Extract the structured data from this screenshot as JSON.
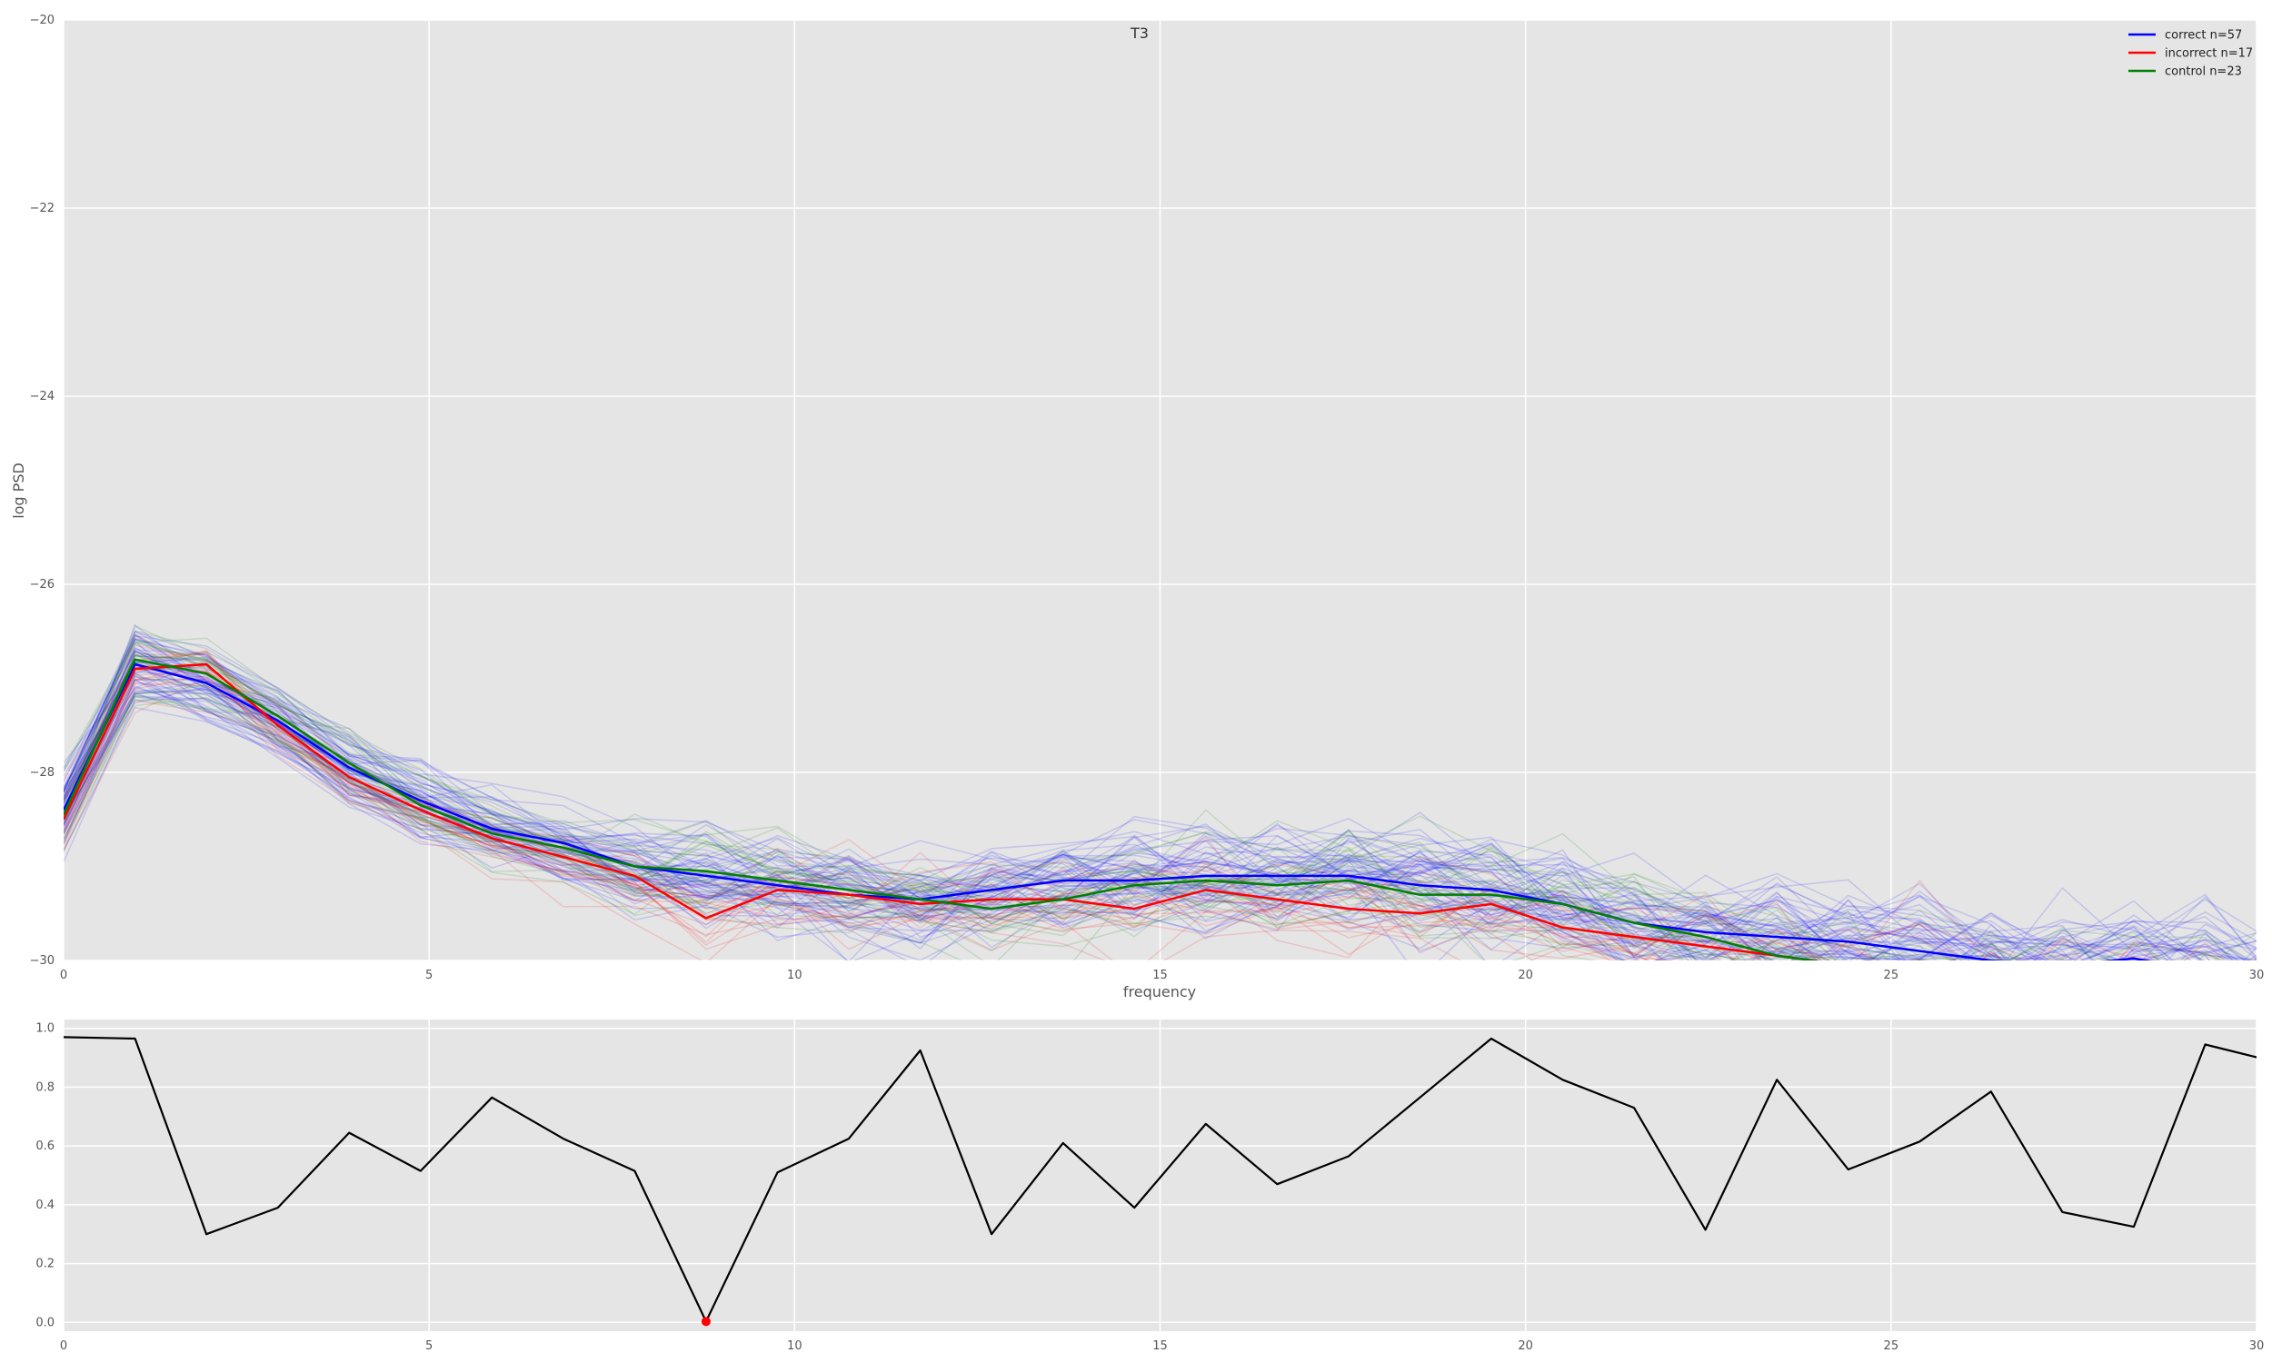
{
  "chart_data": [
    {
      "type": "line",
      "title": "T3",
      "xlabel": "frequency",
      "ylabel": "log PSD",
      "xlim": [
        0,
        30
      ],
      "ylim": [
        -30,
        -20
      ],
      "xticks": [
        0,
        5,
        10,
        15,
        20,
        25,
        30
      ],
      "yticks": [
        -30,
        -28,
        -26,
        -24,
        -22,
        -20
      ],
      "grid": true,
      "legend_position": "top-right",
      "x": [
        0,
        0.977,
        1.953,
        2.93,
        3.906,
        4.883,
        5.859,
        6.836,
        7.813,
        8.789,
        9.766,
        10.742,
        11.719,
        12.695,
        13.672,
        14.648,
        15.625,
        16.602,
        17.578,
        18.555,
        19.531,
        20.508,
        21.484,
        22.461,
        23.438,
        24.414,
        25.391,
        26.367,
        27.344,
        28.32,
        29.297,
        30.273
      ],
      "series": [
        {
          "name": "correct n=57",
          "color": "#0000ff",
          "values": [
            -28.4,
            -26.85,
            -27.05,
            -27.45,
            -27.95,
            -28.3,
            -28.6,
            -28.75,
            -29.0,
            -29.1,
            -29.2,
            -29.3,
            -29.35,
            -29.25,
            -29.15,
            -29.15,
            -29.1,
            -29.1,
            -29.1,
            -29.2,
            -29.25,
            -29.4,
            -29.6,
            -29.7,
            -29.75,
            -29.8,
            -29.9,
            -30.0,
            -30.05,
            -29.98,
            -30.1,
            -30.2
          ]
        },
        {
          "name": "incorrect n=17",
          "color": "#ff0000",
          "values": [
            -28.5,
            -26.9,
            -26.85,
            -27.5,
            -28.05,
            -28.4,
            -28.7,
            -28.9,
            -29.1,
            -29.55,
            -29.25,
            -29.3,
            -29.4,
            -29.35,
            -29.35,
            -29.45,
            -29.25,
            -29.35,
            -29.45,
            -29.5,
            -29.4,
            -29.65,
            -29.75,
            -29.85,
            -29.95,
            -30.05,
            -30.1,
            -30.15,
            -30.2,
            -30.2,
            -30.25,
            -30.3
          ]
        },
        {
          "name": "control n=23",
          "color": "#008000",
          "values": [
            -28.45,
            -26.8,
            -26.95,
            -27.4,
            -27.9,
            -28.35,
            -28.65,
            -28.8,
            -29.0,
            -29.05,
            -29.15,
            -29.25,
            -29.35,
            -29.45,
            -29.35,
            -29.2,
            -29.15,
            -29.2,
            -29.15,
            -29.3,
            -29.3,
            -29.4,
            -29.6,
            -29.75,
            -29.95,
            -30.05,
            -30.1,
            -30.15,
            -30.2,
            -30.25,
            -30.3,
            -30.35
          ]
        }
      ],
      "background_traces": {
        "correct_count": 57,
        "incorrect_count": 17,
        "control_count": 23,
        "opacity": 0.15
      }
    },
    {
      "type": "line",
      "xlim": [
        0,
        30
      ],
      "ylim": [
        -0.03,
        1.03
      ],
      "xticks": [
        0,
        5,
        10,
        15,
        20,
        25,
        30
      ],
      "yticks": [
        0.0,
        0.2,
        0.4,
        0.6,
        0.8,
        1.0
      ],
      "ytick_labels": [
        "0.0",
        "0.2",
        "0.4",
        "0.6",
        "0.8",
        "1.0"
      ],
      "grid": true,
      "x": [
        0,
        0.977,
        1.953,
        2.93,
        3.906,
        4.883,
        5.859,
        6.836,
        7.813,
        8.789,
        9.766,
        10.742,
        11.719,
        12.695,
        13.672,
        14.648,
        15.625,
        16.602,
        17.578,
        18.555,
        19.531,
        20.508,
        21.484,
        22.461,
        23.438,
        24.414,
        25.391,
        26.367,
        27.344,
        28.32,
        29.297,
        30.273
      ],
      "series": [
        {
          "color": "#000000",
          "values": [
            0.97,
            0.965,
            0.3,
            0.39,
            0.645,
            0.515,
            0.765,
            0.625,
            0.515,
            0.003,
            0.51,
            0.625,
            0.925,
            0.3,
            0.61,
            0.39,
            0.675,
            0.47,
            0.565,
            0.765,
            0.965,
            0.825,
            0.73,
            0.315,
            0.825,
            0.52,
            0.615,
            0.785,
            0.375,
            0.325,
            0.945,
            0.885
          ]
        }
      ],
      "highlight_points": [
        {
          "x": 8.789,
          "y": 0.003,
          "color": "#ff0000"
        }
      ]
    }
  ]
}
